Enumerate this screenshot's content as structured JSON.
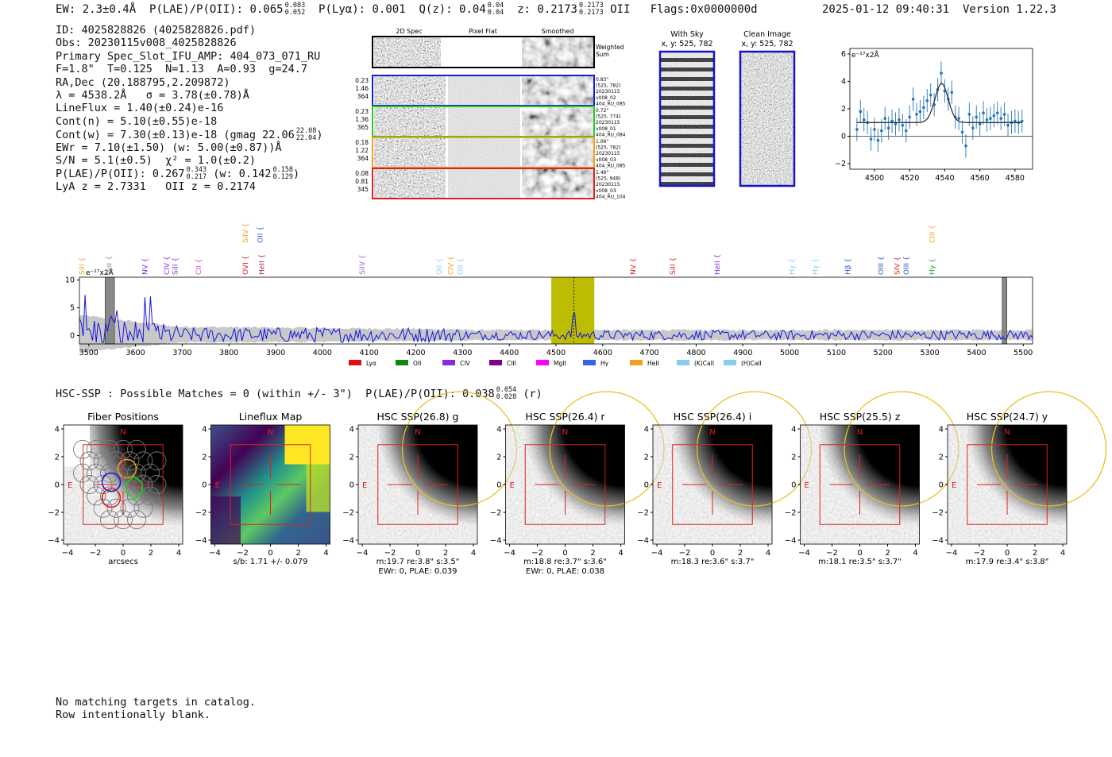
{
  "header": {
    "ew": "EW: 2.3±0.4Å",
    "plae_label": "P(LAE)/P(OII): 0.065",
    "plae_hi": "0.083",
    "plae_lo": "0.052",
    "plya": "P(Lyα): 0.001",
    "qz_label": "Q(z): 0.04",
    "qz_hi": "0.04",
    "qz_lo": "0.04",
    "z_label": "z: 0.2173",
    "z_hi": "0.2173",
    "z_lo": "0.2173",
    "z_line": "OII",
    "flags": "Flags:0x0000000d",
    "timestamp": "2025-01-12 09:40:31",
    "version": "Version 1.22.3"
  },
  "params": {
    "id": "ID: 4025828826 (4025828826.pdf)",
    "obs": "Obs: 20230115v008_4025828826",
    "primary": "Primary Spec_Slot_IFU_AMP: 404_073_071_RU",
    "fwhm": "F=1.8\"  T=0.125  N=1.13  A=0.93  g=24.7",
    "radec": "RA,Dec (20.188795,2.209872)",
    "lambda": "λ = 4538.2Å   σ = 3.78(±0.78)Å",
    "lineflux": "LineFlux = 1.40(±0.24)e-16",
    "contn": "Cont(n) = 5.10(±0.55)e-18",
    "contw": "Cont(w) = 7.30(±0.13)e-18 (gmag 22.06",
    "gmag_hi": "22.08",
    "gmag_lo": "22.04",
    "ewr": "EWr = 7.10(±1.50) (w: 5.00(±0.87))Å",
    "sn": "S/N = 5.1(±0.5)  χ² = 1.0(±0.2)",
    "plae2": "P(LAE)/P(OII): 0.267",
    "plae2_hi": "0.343",
    "plae2_lo": "0.217",
    "plae2_w": "(w: 0.142",
    "plae2_w_hi": "0.158",
    "plae2_w_lo": "0.129",
    "lya_z": "LyA z = 2.7331   OII z = 0.2174"
  },
  "cutouts": {
    "col_2d": "2D Spec",
    "col_flat": "Pixel Flat",
    "col_smooth": "Smoothed",
    "weighted": [
      "Weighted",
      "Sum"
    ],
    "rows": [
      {
        "color": "#1a1adb",
        "left": [
          "0.23",
          "1.46",
          "364"
        ],
        "right": [
          "0.83\"",
          "(525, 782)",
          "20230115",
          "v008_02",
          "404_RU_085"
        ]
      },
      {
        "color": "#22cc22",
        "left": [
          "0.23",
          "1.36",
          "365"
        ],
        "right": [
          "0.72\"",
          "(525, 774)",
          "20230115",
          "v008_01",
          "404_RU_084"
        ]
      },
      {
        "color": "#f0a020",
        "left": [
          "0.18",
          "1.22",
          "364"
        ],
        "right": [
          "1.06\"",
          "(525, 782)",
          "20230115",
          "v008_03",
          "404_RU_085"
        ]
      },
      {
        "color": "#e02020",
        "left": [
          "0.08",
          "0.81",
          "345"
        ],
        "right": [
          "1.49\"",
          "(525, 948)",
          "20230115",
          "v008_03",
          "404_RU_104"
        ]
      }
    ]
  },
  "sky_panels": {
    "with_sky_title": "With Sky",
    "with_sky_xy": "x, y: 525, 782",
    "clean_title": "Clean Image",
    "clean_xy": "x, y: 525, 782"
  },
  "fit_plot": {
    "unit": "e⁻¹⁷x2Å",
    "xticks": [
      "4500",
      "4520",
      "4540",
      "4560",
      "4580"
    ],
    "yticks": [
      "−2",
      "0",
      "2",
      "4",
      "6"
    ]
  },
  "spectrum": {
    "unit": "e⁻¹⁷x2Å",
    "yticks": [
      "0",
      "5",
      "10"
    ],
    "xticks": [
      "3500",
      "3600",
      "3700",
      "3800",
      "3900",
      "4000",
      "4100",
      "4200",
      "4300",
      "4400",
      "4500",
      "4600",
      "4700",
      "4800",
      "4900",
      "5000",
      "5100",
      "5200",
      "5300",
      "5400",
      "5500"
    ],
    "line_labels": [
      {
        "t": "SiII",
        "w": 3490,
        "row": 0,
        "c": "#f0a020"
      },
      {
        "t": "Lyα",
        "w": 3548,
        "row": 0,
        "c": "#999999"
      },
      {
        "t": "NV",
        "w": 3625,
        "row": 0,
        "c": "#8a2be2"
      },
      {
        "t": "CIV",
        "w": 3672,
        "row": 0,
        "c": "#8a2be2"
      },
      {
        "t": "SiII",
        "w": 3690,
        "row": 0,
        "c": "#8a2be2"
      },
      {
        "t": "CII",
        "w": 3740,
        "row": 0,
        "c": "#cc44cc"
      },
      {
        "t": "OVI",
        "w": 3840,
        "row": 0,
        "c": "#e02020"
      },
      {
        "t": "HeII",
        "w": 3875,
        "row": 0,
        "c": "#aa2266"
      },
      {
        "t": "SiIV",
        "w": 3840,
        "row": 1,
        "c": "#f0a020"
      },
      {
        "t": "OII",
        "w": 3872,
        "row": 1,
        "c": "#3355cc"
      },
      {
        "t": "SiIV",
        "w": 4090,
        "row": 0,
        "c": "#9966cc"
      },
      {
        "t": "OII",
        "w": 4255,
        "row": 0,
        "c": "#88ccee"
      },
      {
        "t": "CIV",
        "w": 4280,
        "row": 0,
        "c": "#f0a020"
      },
      {
        "t": "OII",
        "w": 4300,
        "row": 0,
        "c": "#88ccee"
      },
      {
        "t": "NV",
        "w": 4670,
        "row": 0,
        "c": "#e02020"
      },
      {
        "t": "SiII",
        "w": 4755,
        "row": 0,
        "c": "#e02020"
      },
      {
        "t": "HeII",
        "w": 4850,
        "row": 0,
        "c": "#8a2be2"
      },
      {
        "t": "Hγ",
        "w": 5010,
        "row": 0,
        "c": "#88ccee"
      },
      {
        "t": "Hγ",
        "w": 5060,
        "row": 0,
        "c": "#88ccee"
      },
      {
        "t": "Hβ",
        "w": 5130,
        "row": 0,
        "c": "#3355cc"
      },
      {
        "t": "OIII",
        "w": 5200,
        "row": 0,
        "c": "#3355cc"
      },
      {
        "t": "SIV",
        "w": 5235,
        "row": 0,
        "c": "#e02020"
      },
      {
        "t": "OIII",
        "w": 5255,
        "row": 0,
        "c": "#3355cc"
      },
      {
        "t": "Hγ",
        "w": 5310,
        "row": 0,
        "c": "#22aa22"
      },
      {
        "t": "CIII",
        "w": 5310,
        "row": 1,
        "c": "#f0a020"
      }
    ],
    "legend": [
      {
        "label": "Lyα",
        "color": "#e01010"
      },
      {
        "label": "OII",
        "color": "#118811"
      },
      {
        "label": "CIV",
        "color": "#8a2be2"
      },
      {
        "label": "CIII",
        "color": "#800080"
      },
      {
        "label": "MgII",
        "color": "#ff00ff"
      },
      {
        "label": "Hγ",
        "color": "#3366ee"
      },
      {
        "label": "HeII",
        "color": "#f0a020"
      },
      {
        "label": "(K)CaII",
        "color": "#88ccee"
      },
      {
        "label": "(H)CaII",
        "color": "#88ccee"
      }
    ]
  },
  "hsc": {
    "line_label": "HSC-SSP : Possible Matches = 0 (within +/- 3\")  P(LAE)/P(OII): 0.038",
    "line_hi": "0.054",
    "line_lo": "0.028",
    "line_band": "(r)",
    "compass_n": "N",
    "compass_e": "E",
    "xticks": [
      "−4",
      "−2",
      "0",
      "2",
      "4"
    ],
    "yticks": [
      "4",
      "2",
      "0",
      "−2",
      "−4"
    ],
    "panels": [
      {
        "title": "Fiber Positions",
        "cap1": "arcsecs",
        "cap2": ""
      },
      {
        "title": "Lineflux Map",
        "cap1": "s/b: 1.71 +/- 0.079",
        "cap2": ""
      },
      {
        "title": "HSC SSP(26.8) g",
        "cap1": "m:19.7  re:3.8\"  s:3.5\"",
        "cap2": "EWr: 0, PLAE: 0.039"
      },
      {
        "title": "HSC SSP(26.4) r",
        "cap1": "m:18.8  re:3.7\"  s:3.6\"",
        "cap2": "EWr: 0, PLAE: 0.038"
      },
      {
        "title": "HSC SSP(26.4) i",
        "cap1": "m:18.3  re:3.6\"  s:3.7\"",
        "cap2": ""
      },
      {
        "title": "HSC SSP(25.5) z",
        "cap1": "m:18.1  re:3.5\"  s:3.7\"",
        "cap2": ""
      },
      {
        "title": "HSC SSP(24.7) y",
        "cap1": "m:17.9  re:3.4\"  s:3.8\"",
        "cap2": ""
      }
    ]
  },
  "footer": {
    "line1": "No matching targets in catalog.",
    "line2": "Row intentionally blank."
  },
  "chart_data": [
    {
      "type": "scatter",
      "name": "line-fit",
      "xlim": [
        4486,
        4590
      ],
      "ylim": [
        -2.4,
        6.4
      ],
      "x": [
        4490,
        4492,
        4494,
        4496,
        4498,
        4500,
        4502,
        4504,
        4506,
        4508,
        4510,
        4512,
        4514,
        4516,
        4518,
        4520,
        4522,
        4524,
        4526,
        4528,
        4530,
        4532,
        4534,
        4536,
        4538,
        4540,
        4542,
        4544,
        4546,
        4548,
        4550,
        4552,
        4554,
        4556,
        4558,
        4560,
        4562,
        4564,
        4566,
        4568,
        4570,
        4572,
        4574,
        4576,
        4578,
        4580,
        4582,
        4584
      ],
      "y": [
        0.5,
        1.8,
        1.2,
        1.0,
        -0.2,
        0.5,
        -0.3,
        0.4,
        1.3,
        0.6,
        1.1,
        0.9,
        1.2,
        0.8,
        0.4,
        1.4,
        2.7,
        1.6,
        1.8,
        2.1,
        2.6,
        3.0,
        2.3,
        3.4,
        4.6,
        3.3,
        2.7,
        3.2,
        1.4,
        1.3,
        0.3,
        -0.7,
        1.6,
        0.6,
        1.4,
        0.9,
        1.7,
        1.2,
        1.3,
        1.5,
        1.7,
        1.3,
        1.6,
        0.8,
        1.0,
        1.1,
        1.0,
        1.1
      ],
      "err": 0.85,
      "fit": {
        "continuum": 1.0,
        "amplitude": 2.85,
        "center": 4538.2,
        "sigma": 3.78
      }
    },
    {
      "type": "line",
      "name": "full-spectrum",
      "xlim": [
        3480,
        5520
      ],
      "ylim": [
        -1.5,
        10.5
      ],
      "xlabel": "",
      "ylabel": "",
      "highlight": [
        4490,
        4582
      ],
      "marked_line": 4538,
      "masked": [
        [
          3535,
          3555
        ],
        [
          5455,
          5465
        ]
      ]
    }
  ]
}
